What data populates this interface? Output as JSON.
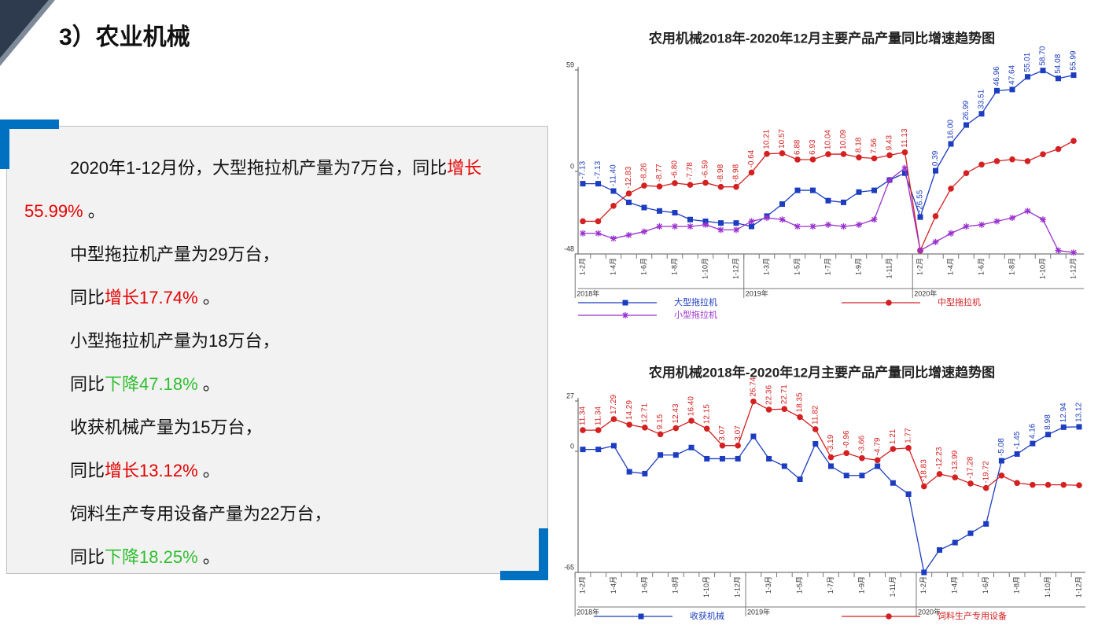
{
  "header": {
    "title": "3）农业机械"
  },
  "text_box": {
    "paragraphs": [
      {
        "runs": [
          {
            "text": "2020年1-12月份，大型拖拉机产量为7万台，同比"
          },
          {
            "text": "增长55.99%",
            "color": "#e60000"
          },
          {
            "text": " 。"
          }
        ]
      },
      {
        "runs": [
          {
            "text": "中型拖拉机产量为29万台，"
          }
        ]
      },
      {
        "runs": [
          {
            "text": "同比"
          },
          {
            "text": "增长17.74%",
            "color": "#e60000"
          },
          {
            "text": " 。"
          }
        ]
      },
      {
        "runs": [
          {
            "text": "小型拖拉机产量为18万台，"
          }
        ]
      },
      {
        "runs": [
          {
            "text": "同比"
          },
          {
            "text": "下降47.18%",
            "color": "#2fbf2f"
          },
          {
            "text": " 。"
          }
        ]
      },
      {
        "runs": [
          {
            "text": "收获机械产量为15万台，"
          }
        ]
      },
      {
        "runs": [
          {
            "text": "同比"
          },
          {
            "text": "增长13.12%",
            "color": "#e60000"
          },
          {
            "text": " 。"
          }
        ]
      },
      {
        "runs": [
          {
            "text": "饲料生产专用设备产量为22万台，"
          }
        ]
      },
      {
        "runs": [
          {
            "text": "同比"
          },
          {
            "text": "下降18.25%",
            "color": "#2fbf2f"
          },
          {
            "text": " 。"
          }
        ]
      }
    ]
  },
  "chart_data": [
    {
      "type": "line",
      "title": "农用机械2018年-2020年12月主要产品产量同比增速趋势图",
      "categories": [
        "1-2月",
        null,
        "1-4月",
        null,
        "1-6月",
        null,
        "1-8月",
        null,
        "1-10月",
        null,
        "1-12月",
        null,
        "1-3月",
        null,
        "1-5月",
        null,
        "1-7月",
        null,
        "1-9月",
        null,
        "1-11月",
        null,
        "1-2月",
        null,
        "1-4月",
        null,
        "1-6月",
        null,
        "1-8月",
        null,
        "1-10月",
        null,
        "1-12月"
      ],
      "year_labels": [
        "2018年",
        "2019年",
        "2020年"
      ],
      "ylim": [
        -48,
        59
      ],
      "yticks": [
        59,
        0,
        -48
      ],
      "grid": false,
      "series": [
        {
          "name": "大型拖拉机",
          "color": "#1c3dbf",
          "marker": "square",
          "values": [
            -7.13,
            -7.13,
            -11.4,
            -18,
            -21,
            -23,
            -24,
            -28,
            -29,
            -30,
            -30,
            -32,
            -26,
            -19,
            -11,
            -11,
            -17,
            -18,
            -12,
            -11,
            -5,
            -1,
            -26.55,
            0.39,
            16,
            26.99,
            33.51,
            46.96,
            47.64,
            55.01,
            58.7,
            54.08,
            55.99
          ],
          "value_labels": [
            "-7.13",
            "-7.13",
            "-11.40",
            null,
            null,
            null,
            null,
            null,
            null,
            null,
            null,
            null,
            null,
            null,
            null,
            null,
            null,
            null,
            null,
            null,
            null,
            null,
            "-26.55",
            "0.39",
            "16.00",
            "26.99",
            "33.51",
            "46.96",
            "47.64",
            "55.01",
            "58.70",
            "54.08",
            "55.99"
          ]
        },
        {
          "name": "中型拖拉机",
          "color": "#d42020",
          "marker": "circle",
          "values": [
            -29,
            -29,
            -20,
            -12.83,
            -8.26,
            -8.77,
            -6.8,
            -7.78,
            -6.59,
            -8.98,
            -8.98,
            -0.64,
            10.21,
            10.57,
            6.88,
            6.93,
            10.04,
            10.09,
            8.18,
            7.56,
            9.43,
            11.13,
            -46,
            -26,
            -10,
            -1,
            4,
            6,
            7,
            6,
            10,
            13,
            17.74
          ],
          "value_labels": [
            null,
            null,
            null,
            "-12.83",
            "-8.26",
            "-8.77",
            "-6.80",
            "-7.78",
            "-6.59",
            "-8.98",
            "-8.98",
            "-0.64",
            "10.21",
            "10.57",
            "6.88",
            "6.93",
            "10.04",
            "10.09",
            "8.18",
            "7.56",
            "9.43",
            "11.13",
            null,
            null,
            null,
            null,
            null,
            null,
            null,
            null,
            null,
            null,
            null
          ]
        },
        {
          "name": "小型拖拉机",
          "color": "#9a32cd",
          "marker": "star",
          "values": [
            -36,
            -36,
            -39,
            -37,
            -35,
            -32,
            -32,
            -32,
            -31,
            -34,
            -34,
            -29,
            -27,
            -28,
            -32,
            -32,
            -31,
            -32,
            -31,
            -28,
            -5,
            2,
            -46,
            -41,
            -36,
            -32,
            -31,
            -29,
            -27,
            -23,
            -28,
            -46,
            -47.18
          ]
        }
      ]
    },
    {
      "type": "line",
      "title": "农用机械2018年-2020年12月主要产品产量同比增速趋势图",
      "categories": [
        "1-2月",
        null,
        "1-4月",
        null,
        "1-6月",
        null,
        "1-8月",
        null,
        "1-10月",
        null,
        "1-12月",
        null,
        "1-3月",
        null,
        "1-5月",
        null,
        "1-7月",
        null,
        "1-9月",
        null,
        "1-11月",
        null,
        "1-2月",
        null,
        "1-4月",
        null,
        "1-6月",
        null,
        "1-8月",
        null,
        "1-10月",
        null,
        "1-12月"
      ],
      "year_labels": [
        "2018年",
        "2019年",
        "2020年"
      ],
      "ylim": [
        -65,
        27
      ],
      "yticks": [
        27,
        0,
        -65
      ],
      "grid": false,
      "series": [
        {
          "name": "收获机械",
          "color": "#1c3dbf",
          "marker": "square",
          "values": [
            1,
            1,
            3,
            -11,
            -12,
            -2,
            -2,
            2,
            -4,
            -4,
            -4,
            8,
            -4,
            -8,
            -15,
            4,
            -8,
            -13,
            -13,
            -8,
            -17,
            -23,
            -65,
            -53,
            -49,
            -44,
            -39,
            -5.08,
            -1.45,
            4.16,
            8.98,
            12.94,
            13.12
          ],
          "value_labels": [
            null,
            null,
            null,
            null,
            null,
            null,
            null,
            null,
            null,
            null,
            null,
            null,
            null,
            null,
            null,
            null,
            null,
            null,
            null,
            null,
            null,
            null,
            null,
            null,
            null,
            null,
            null,
            "-5.08",
            "-1.45",
            "4.16",
            "8.98",
            "12.94",
            "13.12"
          ]
        },
        {
          "name": "饲料生产专用设备",
          "color": "#d42020",
          "marker": "circle",
          "values": [
            11.34,
            11.34,
            17.29,
            14.29,
            12.71,
            9.15,
            12.43,
            16.4,
            12.15,
            3.07,
            3.07,
            26.74,
            22.36,
            22.71,
            18.35,
            11.82,
            -3.19,
            -0.96,
            -3.66,
            -4.79,
            1.21,
            1.77,
            -18.83,
            -12.23,
            -13.99,
            -17.28,
            -19.72,
            -13,
            -17,
            -18,
            -18,
            -18,
            -18.25
          ],
          "value_labels": [
            "11.34",
            "11.34",
            "17.29",
            "14.29",
            "12.71",
            "9.15",
            "12.43",
            "16.40",
            "12.15",
            "3.07",
            "3.07",
            "26.74",
            "22.36",
            "22.71",
            "18.35",
            "11.82",
            "-3.19",
            "-0.96",
            "-3.66",
            "-4.79",
            "1.21",
            "1.77",
            "-18.83",
            "-12.23",
            "-13.99",
            "-17.28",
            "-19.72",
            null,
            null,
            null,
            null,
            null,
            null
          ]
        }
      ]
    }
  ]
}
